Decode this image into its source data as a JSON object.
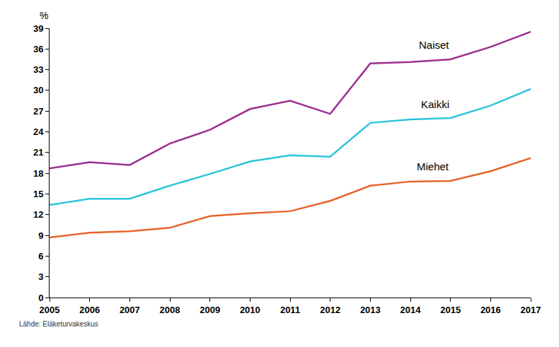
{
  "chart_data": {
    "type": "line",
    "ylabel": "%",
    "source": "Lähde: Eläketurvakeskus",
    "x": [
      2005,
      2006,
      2007,
      2008,
      2009,
      2010,
      2011,
      2012,
      2013,
      2014,
      2015,
      2016,
      2017
    ],
    "series": [
      {
        "name": "Naiset",
        "color": "#9b2f8f",
        "values": [
          18.7,
          19.6,
          19.2,
          22.3,
          24.3,
          27.3,
          28.5,
          26.6,
          33.9,
          34.1,
          34.5,
          36.3,
          38.5
        ]
      },
      {
        "name": "Kaikki",
        "color": "#2ec4dc",
        "values": [
          13.4,
          14.3,
          14.3,
          16.2,
          17.9,
          19.7,
          20.6,
          20.4,
          25.3,
          25.8,
          26.0,
          27.8,
          30.2
        ]
      },
      {
        "name": "Miehet",
        "color": "#e8642a",
        "values": [
          8.7,
          9.4,
          9.6,
          10.1,
          11.8,
          12.2,
          12.5,
          14.0,
          16.2,
          16.8,
          16.9,
          18.3,
          20.2
        ]
      }
    ],
    "xlim": [
      2005,
      2017
    ],
    "xticks": [
      2005,
      2006,
      2007,
      2008,
      2009,
      2010,
      2011,
      2012,
      2013,
      2014,
      2015,
      2016,
      2017
    ],
    "ylim": [
      0,
      39
    ],
    "yticks": [
      0,
      3,
      6,
      9,
      12,
      15,
      18,
      21,
      24,
      27,
      30,
      33,
      36,
      39
    ],
    "grid": false,
    "legend": false
  }
}
